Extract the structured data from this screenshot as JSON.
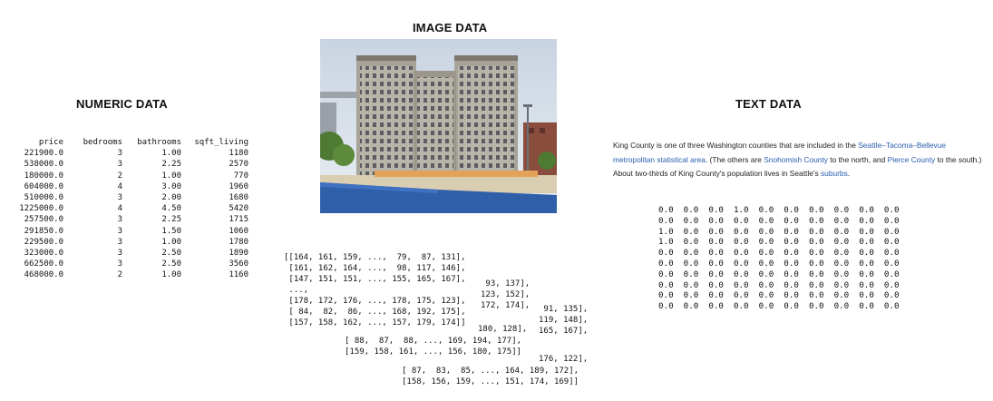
{
  "numeric": {
    "title": "NUMERIC DATA",
    "columns": [
      "price",
      "bedrooms",
      "bathrooms",
      "sqft_living"
    ],
    "rows": [
      [
        "221900.0",
        "3",
        "1.00",
        "1180"
      ],
      [
        "538000.0",
        "3",
        "2.25",
        "2570"
      ],
      [
        "180000.0",
        "2",
        "1.00",
        "770"
      ],
      [
        "604000.0",
        "4",
        "3.00",
        "1960"
      ],
      [
        "510000.0",
        "3",
        "2.00",
        "1680"
      ],
      [
        "1225000.0",
        "4",
        "4.50",
        "5420"
      ],
      [
        "257500.0",
        "3",
        "2.25",
        "1715"
      ],
      [
        "291850.0",
        "3",
        "1.50",
        "1060"
      ],
      [
        "229500.0",
        "3",
        "1.00",
        "1780"
      ],
      [
        "323000.0",
        "3",
        "2.50",
        "1890"
      ],
      [
        "662500.0",
        "3",
        "2.50",
        "3560"
      ],
      [
        "468000.0",
        "2",
        "1.00",
        "1160"
      ]
    ]
  },
  "image": {
    "title": "IMAGE DATA",
    "photo_icon": "building-photo",
    "array_blocks": [
      [
        "[[164, 161, 159, ...,  79,  87, 131],",
        " [161, 162, 164, ...,  98, 117, 146],",
        " [147, 151, 151, ..., 155, 165, 167],",
        " ...,",
        " [178, 172, 176, ..., 178, 175, 123],",
        " [ 84,  82,  86, ..., 168, 192, 175],",
        " [157, 158, 162, ..., 157, 179, 174]]"
      ],
      [
        " 93, 137],",
        "123, 152],",
        "",
        "172, 174],"
      ],
      [
        " 91, 135],",
        "119, 148],",
        "165, 167],"
      ],
      [
        "180, 128],"
      ],
      [
        "[ 88,  87,  88, ..., 169, 194, 177],",
        "[159, 158, 161, ..., 156, 180, 175]]"
      ],
      [
        "176, 122],"
      ],
      [
        "[ 87,  83,  85, ..., 164, 189, 172],",
        "[158, 156, 159, ..., 151, 174, 169]]"
      ]
    ]
  },
  "text": {
    "title": "TEXT DATA",
    "p1": "King County is one of three Washington counties that are included in the ",
    "link1": "Seattle–Tacoma–Bellevue metropolitan statistical area",
    "p2": ". (The others are ",
    "link2": "Snohomish County",
    "p3": " to the north, and ",
    "link3": "Pierce County",
    "p4": " to the south.) About two-thirds of King County's population lives in Seattle's ",
    "link4": "suburbs",
    "p5": ".",
    "matrix": [
      "0.0  0.0  0.0  1.0  0.0  0.0  0.0  0.0  0.0  0.0",
      "0.0  0.0  0.0  0.0  0.0  0.0  0.0  0.0  0.0  0.0",
      "1.0  0.0  0.0  0.0  0.0  0.0  0.0  0.0  0.0  0.0",
      "1.0  0.0  0.0  0.0  0.0  0.0  0.0  0.0  0.0  0.0",
      "0.0  0.0  0.0  0.0  0.0  0.0  0.0  0.0  0.0  0.0",
      "0.0  0.0  0.0  0.0  0.0  0.0  0.0  0.0  0.0  0.0",
      "0.0  0.0  0.0  0.0  0.0  0.0  0.0  0.0  0.0  0.0",
      "0.0  0.0  0.0  0.0  0.0  0.0  0.0  0.0  0.0  0.0",
      "0.0  0.0  0.0  0.0  0.0  0.0  0.0  0.0  0.0  0.0",
      "0.0  0.0  0.0  0.0  0.0  0.0  0.0  0.0  0.0  0.0"
    ]
  }
}
